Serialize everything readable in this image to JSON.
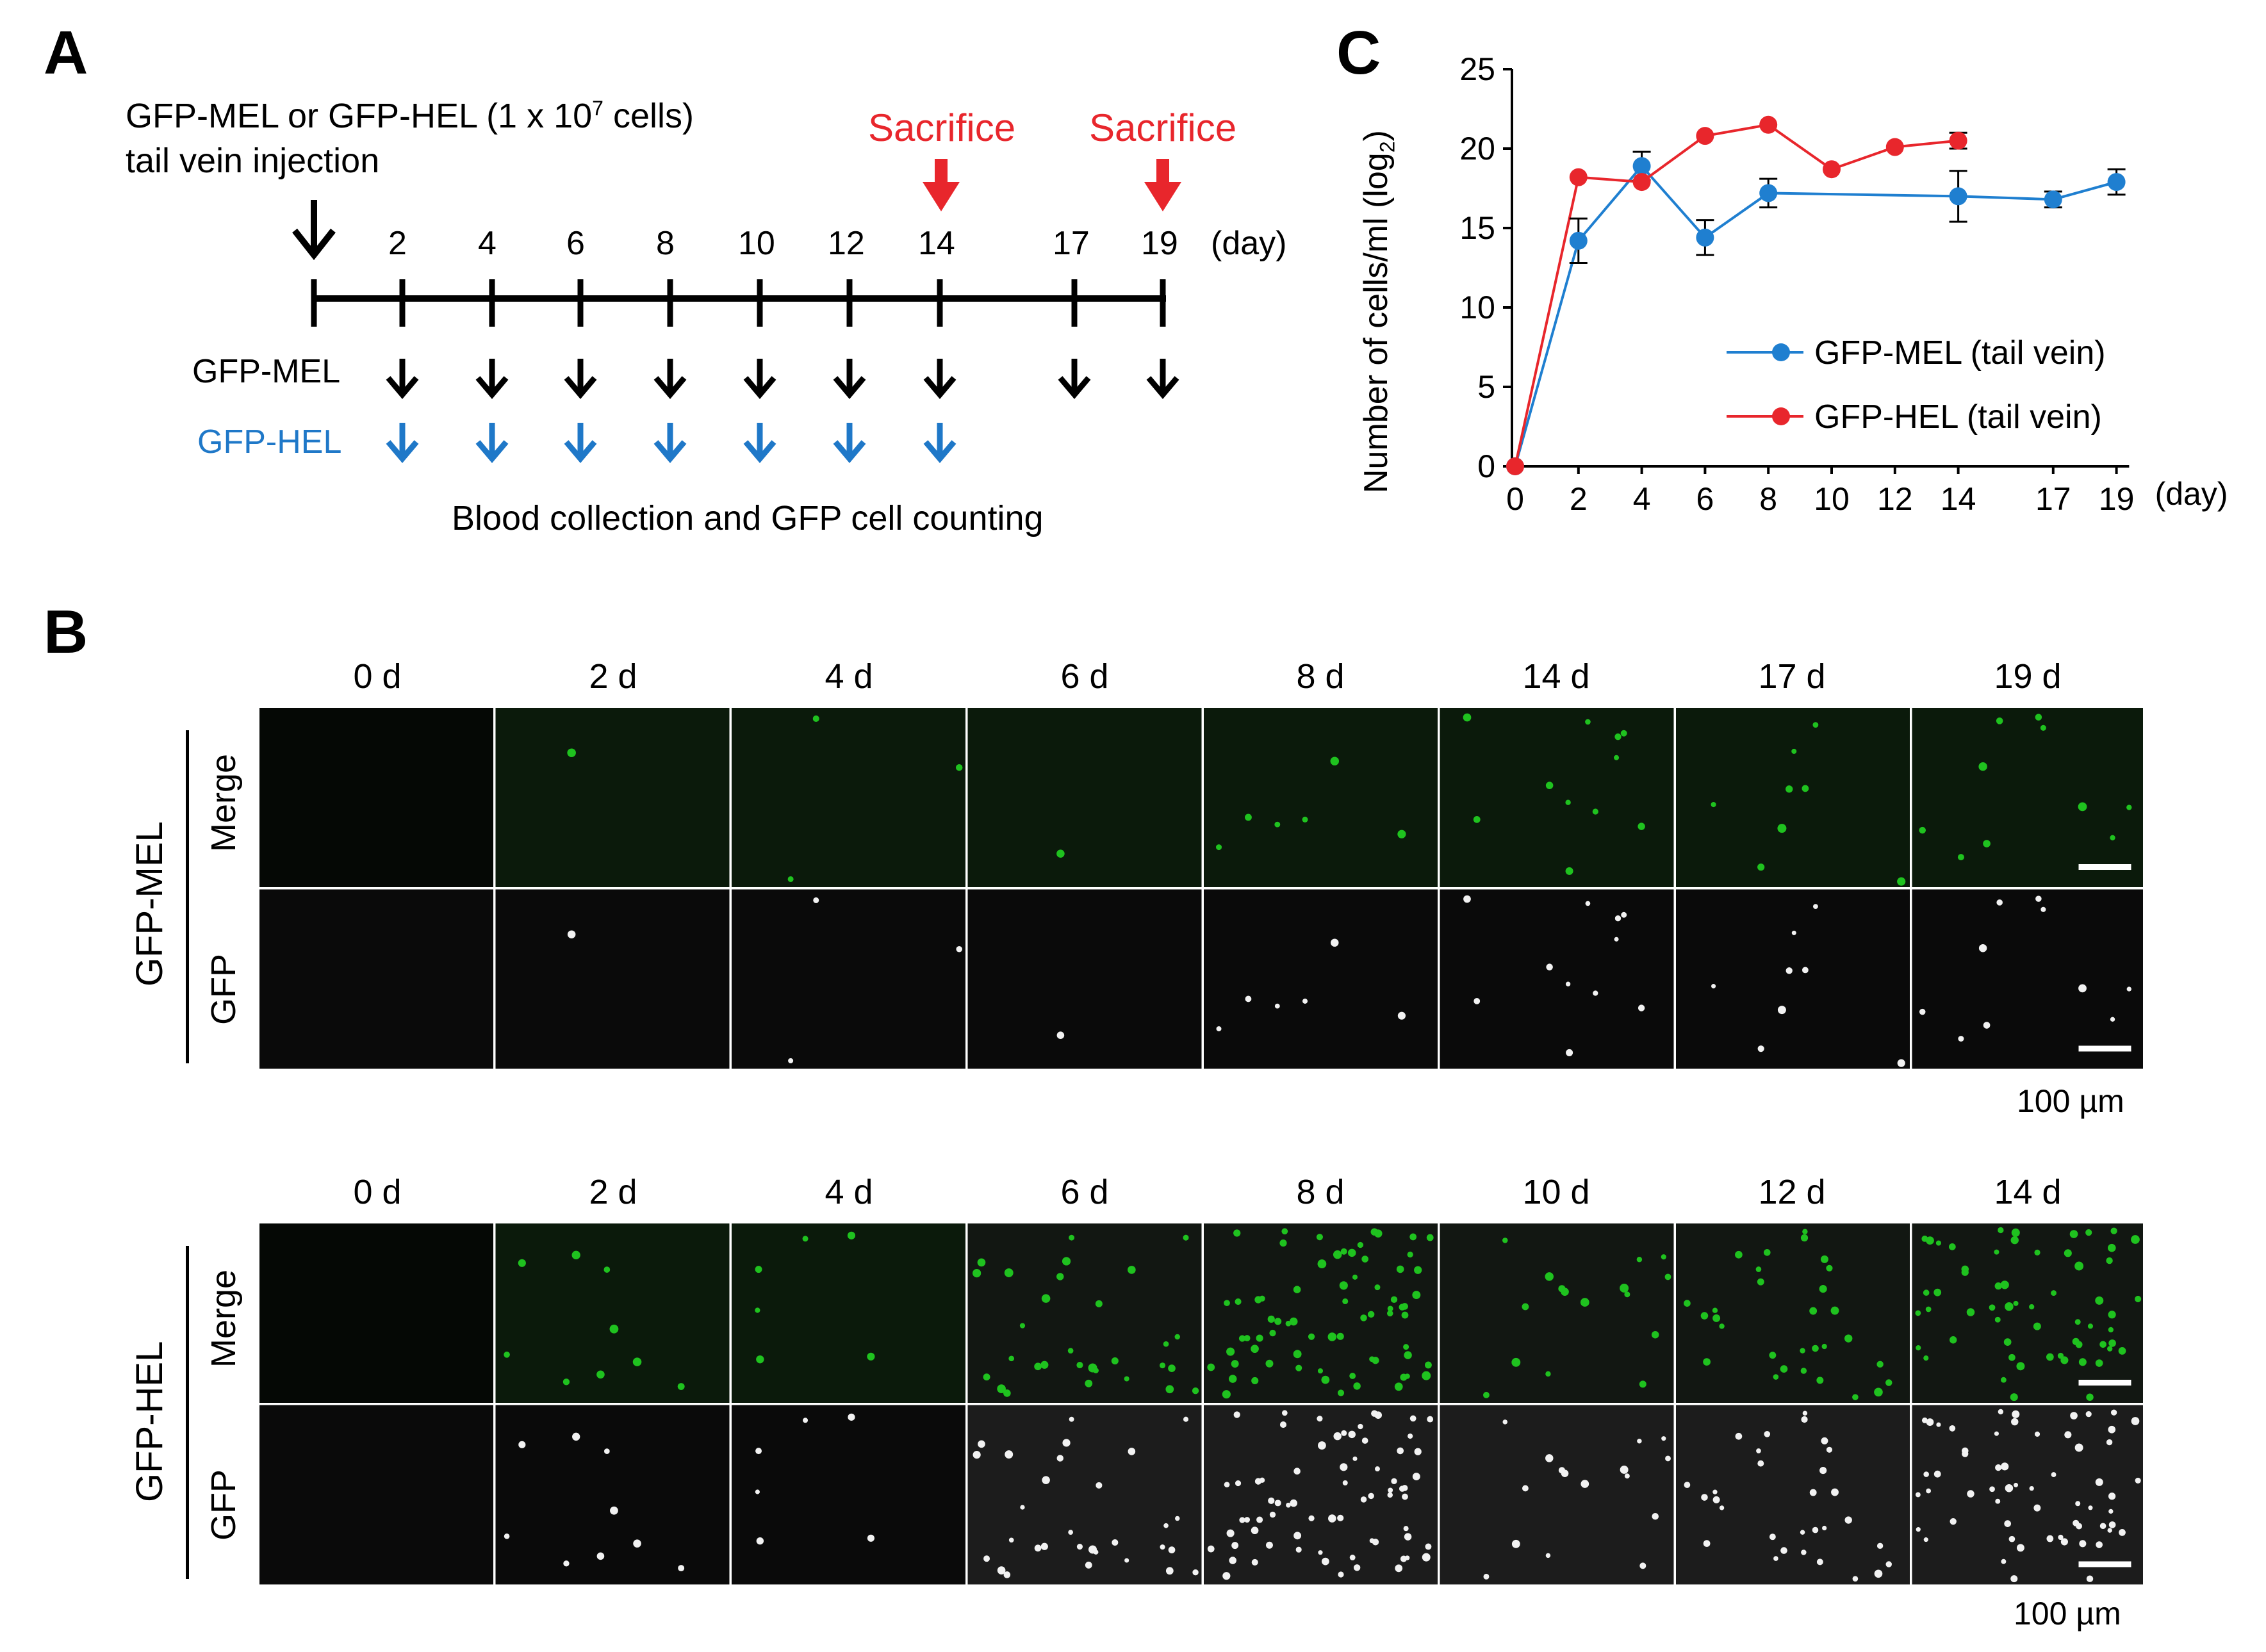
{
  "panel_a": {
    "letter": "A",
    "injection_line1": "GFP-MEL or GFP-HEL (1 x 10",
    "injection_sup": "7",
    "injection_line1_end": " cells)",
    "injection_line2": "tail vein injection",
    "sacrifice_labels": [
      "Sacrifice",
      "Sacrifice"
    ],
    "day_ticks": [
      "2",
      "4",
      "6",
      "8",
      "10",
      "12",
      "14",
      "17",
      "19"
    ],
    "day_unit": "(day)",
    "row_mel": "GFP-MEL",
    "row_hel": "GFP-HEL",
    "caption": "Blood collection and GFP cell counting",
    "colors": {
      "mel_arrow": "#000000",
      "hel_arrow": "#1f78c8",
      "sacrifice": "#e8262c"
    }
  },
  "panel_b": {
    "letter": "B",
    "mel_block": {
      "group_label": "GFP-MEL",
      "row_labels": [
        "Merge",
        "GFP"
      ],
      "columns": [
        "0 d",
        "2 d",
        "4 d",
        "6 d",
        "8 d",
        "14 d",
        "17 d",
        "19 d"
      ],
      "scale_label": "100 µm"
    },
    "hel_block": {
      "group_label": "GFP-HEL",
      "row_labels": [
        "Merge",
        "GFP"
      ],
      "columns": [
        "0 d",
        "2 d",
        "4 d",
        "6 d",
        "8 d",
        "10 d",
        "12 d",
        "14 d"
      ],
      "scale_label": "100 µm"
    }
  },
  "chart_data": {
    "type": "line",
    "panel_letter": "C",
    "title": "",
    "ylabel": "Number of cells/ml (log2)",
    "ylabel_main": "Number of cells/ml (log",
    "ylabel_sub": "2",
    "ylabel_end": ")",
    "xlabel": "(day)",
    "ylim": [
      0,
      25
    ],
    "yticks": [
      "0",
      "5",
      "10",
      "15",
      "20",
      "25"
    ],
    "xticks": [
      "0",
      "2",
      "4",
      "6",
      "8",
      "10",
      "12",
      "14",
      "17",
      "19"
    ],
    "legend_position": "right-middle",
    "series": [
      {
        "name": "GFP-MEL (tail vein)",
        "color": "#1f7fd0",
        "x": [
          0,
          2,
          4,
          6,
          8,
          14,
          17,
          19
        ],
        "values": [
          0,
          14.2,
          18.9,
          14.4,
          17.2,
          17.0,
          16.8,
          17.9
        ],
        "errors": [
          0,
          1.4,
          0.9,
          1.1,
          0.9,
          1.6,
          0.5,
          0.8
        ]
      },
      {
        "name": "GFP-HEL (tail vein)",
        "color": "#e8262c",
        "x": [
          0,
          2,
          4,
          6,
          8,
          10,
          12,
          14
        ],
        "values": [
          0,
          18.2,
          17.9,
          20.8,
          21.5,
          18.7,
          20.1,
          20.5
        ],
        "errors": [
          0,
          0,
          0,
          0,
          0,
          0,
          0,
          0.5
        ]
      }
    ]
  }
}
